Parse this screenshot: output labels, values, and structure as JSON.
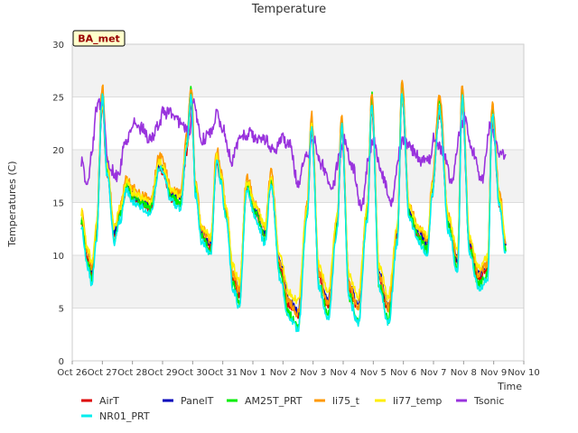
{
  "chart_data": {
    "type": "line",
    "title": "Temperature",
    "ylabel": "Temperatures (C)",
    "xlabel": "Time",
    "badge": "BA_met",
    "ylim": [
      0,
      30
    ],
    "yticks": [
      0,
      5,
      10,
      15,
      20,
      25,
      30
    ],
    "xlim": [
      0,
      15
    ],
    "xticks": [
      {
        "v": 0,
        "label": "Oct 26"
      },
      {
        "v": 1,
        "label": "Oct 27"
      },
      {
        "v": 2,
        "label": "Oct 28"
      },
      {
        "v": 3,
        "label": "Oct 29"
      },
      {
        "v": 4,
        "label": "Oct 30"
      },
      {
        "v": 5,
        "label": "Oct 31"
      },
      {
        "v": 6,
        "label": "Nov 1"
      },
      {
        "v": 7,
        "label": "Nov 2"
      },
      {
        "v": 8,
        "label": "Nov 3"
      },
      {
        "v": 9,
        "label": "Nov 4"
      },
      {
        "v": 10,
        "label": "Nov 5"
      },
      {
        "v": 11,
        "label": "Nov 6"
      },
      {
        "v": 12,
        "label": "Nov 7"
      },
      {
        "v": 13,
        "label": "Nov 8"
      },
      {
        "v": 14,
        "label": "Nov 9"
      },
      {
        "v": 15,
        "label": "Nov 10"
      }
    ],
    "grid": true,
    "legend": "bottom",
    "series": [
      {
        "name": "AirT",
        "color": "#dd0000",
        "offset": -0.2,
        "amp": 1.0,
        "noise": 0.35,
        "seed": 11
      },
      {
        "name": "PanelT",
        "color": "#0000bb",
        "offset": 0.2,
        "amp": 1.0,
        "noise": 0.35,
        "seed": 23
      },
      {
        "name": "AM25T_PRT",
        "color": "#00ee00",
        "offset": -0.1,
        "amp": 1.12,
        "noise": 0.45,
        "seed": 37
      },
      {
        "name": "li75_t",
        "color": "#ff9900",
        "offset": 0.7,
        "amp": 1.08,
        "noise": 0.45,
        "seed": 41
      },
      {
        "name": "li77_temp",
        "color": "#ffee00",
        "offset": 0.6,
        "amp": 0.95,
        "noise": 0.4,
        "seed": 53
      },
      {
        "name": "Tsonic",
        "color": "#9933dd",
        "kind": "tsonic",
        "noise": 0.6,
        "seed": 67
      },
      {
        "name": "NR01_PRT",
        "color": "#00eeee",
        "offset": -0.6,
        "amp": 1.1,
        "noise": 0.4,
        "seed": 79
      }
    ],
    "base_profile": {
      "x": [
        0.3,
        0.5,
        0.65,
        0.8,
        1.0,
        1.15,
        1.4,
        1.6,
        1.8,
        2.0,
        2.3,
        2.6,
        2.9,
        3.0,
        3.3,
        3.6,
        3.8,
        3.95,
        4.1,
        4.3,
        4.6,
        4.8,
        4.95,
        5.1,
        5.35,
        5.55,
        5.8,
        6.1,
        6.4,
        6.6,
        6.9,
        7.2,
        7.5,
        7.8,
        7.95,
        8.2,
        8.5,
        8.8,
        8.95,
        9.2,
        9.5,
        9.8,
        9.95,
        10.2,
        10.5,
        10.8,
        10.95,
        11.2,
        11.5,
        11.8,
        11.95,
        12.2,
        12.5,
        12.8,
        12.95,
        13.2,
        13.5,
        13.8,
        13.95,
        14.2,
        14.4
      ],
      "y": [
        13.5,
        10,
        8.5,
        12,
        24.5,
        18,
        12,
        14,
        16.5,
        15.5,
        15,
        14.5,
        18.5,
        18,
        15.5,
        15,
        20,
        24.5,
        16,
        12,
        11,
        19,
        17,
        14,
        8,
        6.5,
        16.5,
        14,
        12,
        17,
        9,
        5.5,
        4.5,
        14,
        22,
        8,
        5.5,
        13,
        22,
        7,
        5,
        14,
        24,
        8,
        5,
        12,
        25,
        14,
        12,
        11,
        16,
        23.5,
        13,
        9.5,
        24.5,
        11,
        8,
        9,
        23,
        15,
        11
      ]
    },
    "tsonic_profile": {
      "x": [
        0.3,
        0.5,
        0.65,
        0.8,
        1.0,
        1.2,
        1.5,
        1.8,
        2.0,
        2.3,
        2.6,
        2.9,
        3.0,
        3.3,
        3.6,
        3.9,
        4.0,
        4.3,
        4.6,
        4.8,
        5.0,
        5.3,
        5.6,
        5.9,
        6.1,
        6.4,
        6.7,
        7.0,
        7.2,
        7.5,
        7.8,
        8.0,
        8.3,
        8.6,
        8.9,
        9.0,
        9.3,
        9.6,
        9.9,
        10.0,
        10.3,
        10.6,
        10.9,
        11.0,
        11.3,
        11.6,
        11.9,
        12.0,
        12.3,
        12.6,
        12.9,
        13.0,
        13.3,
        13.6,
        13.9,
        14.0,
        14.2,
        14.4
      ],
      "y": [
        19,
        16.5,
        19.5,
        24,
        24.5,
        18.5,
        17.5,
        21,
        22.5,
        22,
        21,
        22.5,
        23.5,
        23.5,
        22.5,
        21.5,
        24.5,
        21,
        21.5,
        23.5,
        22,
        19,
        21.5,
        21.5,
        21,
        21,
        20,
        21,
        20.5,
        17,
        19.5,
        21,
        18.5,
        16,
        19.5,
        21,
        18.5,
        14.5,
        20,
        21,
        17.5,
        15,
        20,
        21,
        20,
        19,
        19,
        21,
        20,
        17,
        22,
        23,
        20,
        17,
        22.5,
        21,
        19.5,
        19.5
      ]
    }
  }
}
